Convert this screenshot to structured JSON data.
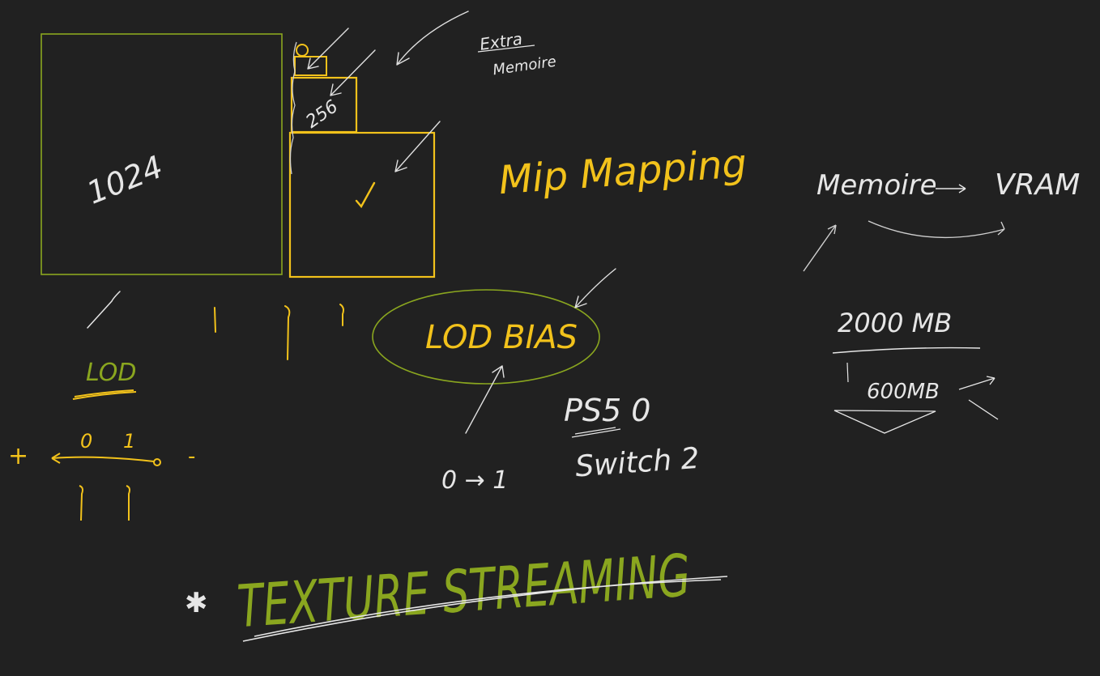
{
  "colors": {
    "background": "#212121",
    "green": "#8aa61f",
    "yellow": "#f2c21b",
    "white": "#e6e6e6"
  },
  "labels": {
    "size_1024": "1024",
    "size_256": "256",
    "extra": "Extra",
    "memoire_small": "Memoire",
    "mip_mapping": "Mip Mapping",
    "memoire": "Memoire",
    "vram": "VRAM",
    "size_2000": "2000 MB",
    "size_600": "600MB",
    "lod_bias": "LOD BIAS",
    "lod": "LOD",
    "plus": "+",
    "minus": "-",
    "zero": "0",
    "one": "1",
    "ps5": "PS5 0",
    "switch": "Switch 2",
    "zero_to_one": "0 → 1",
    "texture_streaming": "TEXTURE STREAMING",
    "star": "✱"
  }
}
